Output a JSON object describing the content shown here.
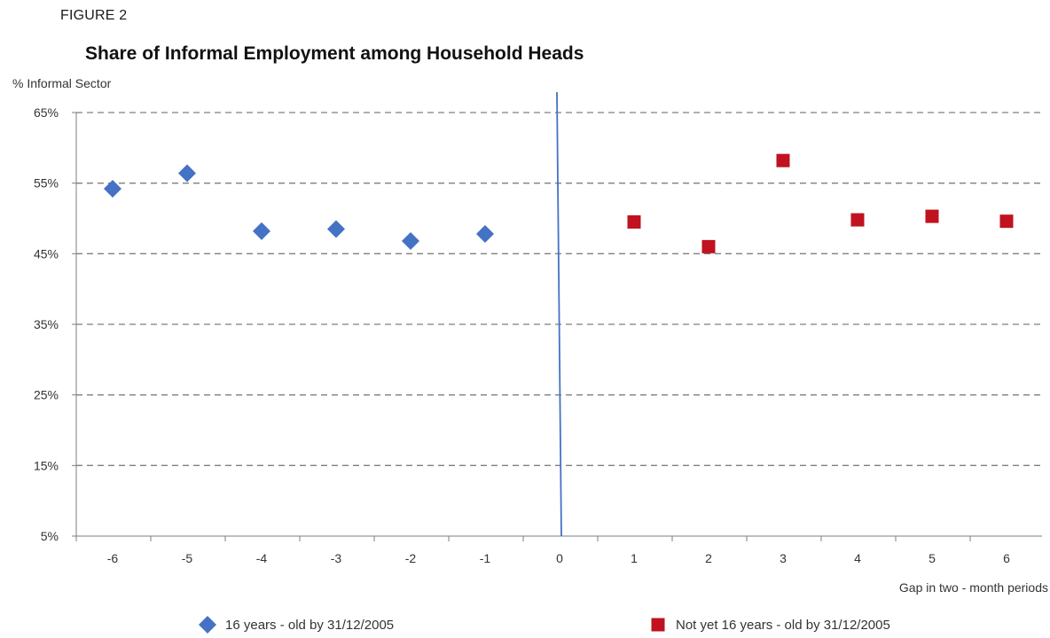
{
  "figure_label": "FIGURE 2",
  "colors": {
    "series_1": "#4472c4",
    "series_2": "#c0121f",
    "gridline": "#7f7f7f",
    "cutoff_line": "#4472c4"
  },
  "chart_data": {
    "type": "scatter",
    "title": "Share of Informal Employment among Household Heads",
    "ylabel": "% Informal Sector",
    "xlabel": "Gap in two - month periods",
    "ylim": [
      5,
      65
    ],
    "yticks": [
      5,
      15,
      25,
      35,
      45,
      55,
      65
    ],
    "ytick_labels": [
      "5%",
      "15%",
      "25%",
      "35%",
      "45%",
      "55%",
      "65%"
    ],
    "xticks": [
      -6,
      -5,
      -4,
      -3,
      -2,
      -1,
      0,
      1,
      2,
      3,
      4,
      5,
      6
    ],
    "xtick_labels": [
      "-6",
      "-5",
      "-4",
      "-3",
      "-2",
      "-1",
      "0",
      "1",
      "2",
      "3",
      "4",
      "5",
      "6"
    ],
    "cutoff_x": 0,
    "grid": "horizontal dashed",
    "legend_position": "bottom",
    "series": [
      {
        "name": "16 years - old by 31/12/2005",
        "marker": "diamond",
        "points": [
          {
            "x": -6,
            "y": 54.2
          },
          {
            "x": -5,
            "y": 56.4
          },
          {
            "x": -4,
            "y": 48.2
          },
          {
            "x": -3,
            "y": 48.5
          },
          {
            "x": -2,
            "y": 46.8
          },
          {
            "x": -1,
            "y": 47.8
          }
        ]
      },
      {
        "name": "Not yet 16 years - old by 31/12/2005",
        "marker": "square",
        "points": [
          {
            "x": 1,
            "y": 49.5
          },
          {
            "x": 2,
            "y": 46.0
          },
          {
            "x": 3,
            "y": 58.2
          },
          {
            "x": 4,
            "y": 49.8
          },
          {
            "x": 5,
            "y": 50.3
          },
          {
            "x": 6,
            "y": 49.6
          }
        ]
      }
    ]
  }
}
